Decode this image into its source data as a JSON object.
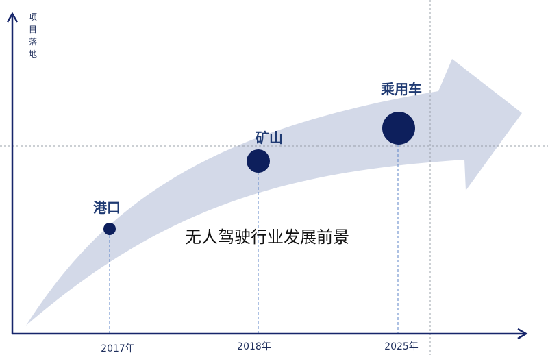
{
  "y_axis_label": [
    "项",
    "目",
    "落",
    "地"
  ],
  "center_text": "无人驾驶行业发展前景",
  "milestones": [
    {
      "label": "港口",
      "year": "2017年"
    },
    {
      "label": "矿山",
      "year": "2018年"
    },
    {
      "label": "乘用车",
      "year": "2025年"
    }
  ],
  "colors": {
    "axis": "#16256a",
    "node": "#0d1f5c",
    "arrow": "#d3d9e8",
    "guide_dashed": "#5b83c7",
    "grid_dashed": "#9aa0aa"
  }
}
